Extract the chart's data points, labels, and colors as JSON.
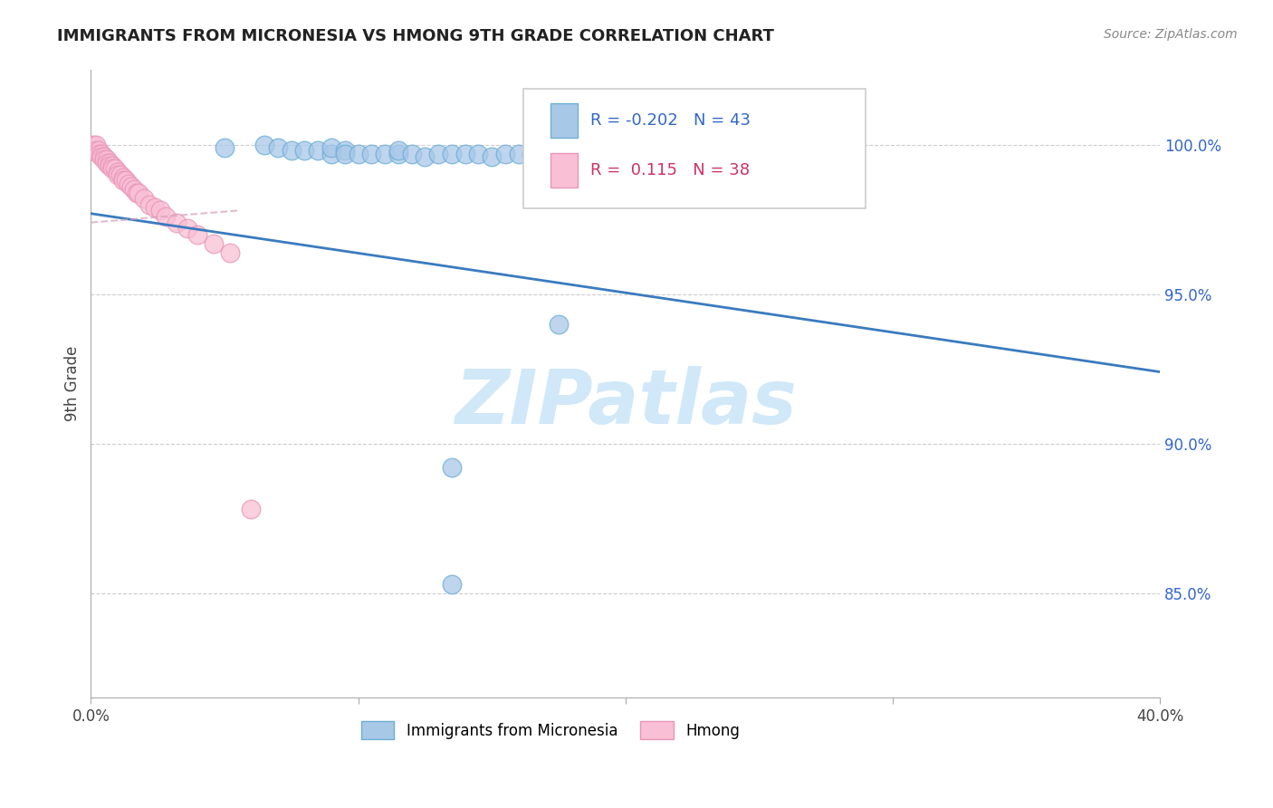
{
  "title": "IMMIGRANTS FROM MICRONESIA VS HMONG 9TH GRADE CORRELATION CHART",
  "source": "Source: ZipAtlas.com",
  "ylabel": "9th Grade",
  "xlim": [
    0.0,
    0.4
  ],
  "ylim": [
    0.815,
    1.025
  ],
  "ytick_values": [
    0.85,
    0.9,
    0.95,
    1.0
  ],
  "ytick_labels": [
    "85.0%",
    "90.0%",
    "95.0%",
    "100.0%"
  ],
  "xtick_values": [
    0.0,
    0.1,
    0.2,
    0.3,
    0.4
  ],
  "xtick_labels": [
    "0.0%",
    "",
    "",
    "",
    "40.0%"
  ],
  "blue_color": "#a8c8e8",
  "blue_edge": "#6baed6",
  "pink_color": "#f9bfd4",
  "pink_edge": "#e896b8",
  "line_blue_color": "#3a7bbf",
  "line_pink_color": "#d4a0b8",
  "grid_color": "#cccccc",
  "watermark": "ZIPatlas",
  "watermark_color": "#d0e8f8",
  "legend_blue_text_color": "#3366cc",
  "legend_pink_text_color": "#cc3366",
  "blue_x": [
    0.05,
    0.065,
    0.07,
    0.075,
    0.08,
    0.085,
    0.09,
    0.09,
    0.095,
    0.095,
    0.1,
    0.105,
    0.11,
    0.115,
    0.115,
    0.12,
    0.125,
    0.13,
    0.135,
    0.14,
    0.145,
    0.15,
    0.155,
    0.16,
    0.165,
    0.17,
    0.175,
    0.18,
    0.19,
    0.195,
    0.2,
    0.205,
    0.21,
    0.215,
    0.22,
    0.23,
    0.24,
    0.25,
    0.26,
    0.27,
    0.175,
    0.135,
    0.135
  ],
  "blue_y": [
    0.999,
    1.0,
    0.999,
    0.998,
    0.998,
    0.998,
    0.997,
    0.999,
    0.998,
    0.997,
    0.997,
    0.997,
    0.997,
    0.997,
    0.998,
    0.997,
    0.996,
    0.997,
    0.997,
    0.997,
    0.997,
    0.996,
    0.997,
    0.997,
    0.997,
    0.997,
    0.997,
    0.997,
    0.997,
    0.996,
    0.997,
    0.997,
    0.997,
    0.997,
    0.996,
    0.997,
    0.997,
    0.996,
    0.997,
    0.996,
    0.94,
    0.892,
    0.853
  ],
  "pink_x": [
    0.001,
    0.002,
    0.002,
    0.003,
    0.003,
    0.004,
    0.004,
    0.005,
    0.005,
    0.006,
    0.006,
    0.007,
    0.007,
    0.008,
    0.008,
    0.009,
    0.01,
    0.01,
    0.011,
    0.012,
    0.012,
    0.013,
    0.014,
    0.015,
    0.016,
    0.017,
    0.018,
    0.02,
    0.022,
    0.024,
    0.026,
    0.028,
    0.032,
    0.036,
    0.04,
    0.046,
    0.052,
    0.06
  ],
  "pink_y": [
    1.0,
    1.0,
    0.998,
    0.998,
    0.997,
    0.997,
    0.996,
    0.996,
    0.995,
    0.995,
    0.994,
    0.994,
    0.993,
    0.993,
    0.992,
    0.992,
    0.991,
    0.99,
    0.99,
    0.989,
    0.988,
    0.988,
    0.987,
    0.986,
    0.985,
    0.984,
    0.984,
    0.982,
    0.98,
    0.979,
    0.978,
    0.976,
    0.974,
    0.972,
    0.97,
    0.967,
    0.964,
    0.878
  ],
  "blue_line_x0": 0.0,
  "blue_line_x1": 0.4,
  "blue_line_y0": 0.977,
  "blue_line_y1": 0.924,
  "pink_line_x0": 0.0,
  "pink_line_x1": 0.055,
  "pink_line_y0": 0.974,
  "pink_line_y1": 0.978
}
